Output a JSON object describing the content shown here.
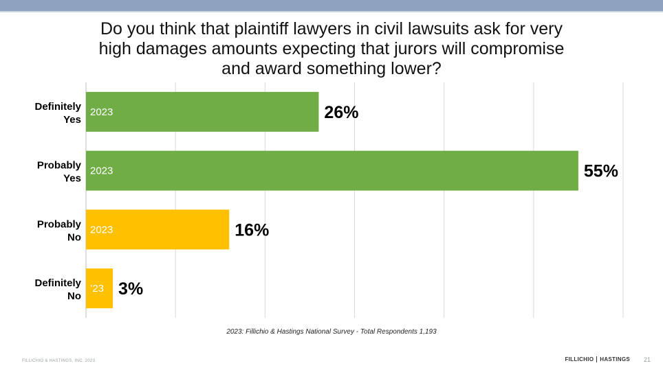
{
  "title_lines": [
    "Do you think that plaintiff lawyers in civil lawsuits ask for very",
    "high damages amounts expecting that jurors will compromise",
    "and award something lower?"
  ],
  "source": "2023: Fillichio & Hastings National Survey  - Total Respondents 1,193",
  "footer": {
    "left": "FILLICHIO & HASTINGS, INC. 2023",
    "brand_left": "FILLICHIO",
    "brand_right": "HASTINGS",
    "page_number": "21"
  },
  "colors": {
    "green": "#70ad47",
    "yellow": "#ffc000",
    "grid": "#d9d9d9"
  },
  "chart_data": {
    "type": "bar",
    "orientation": "horizontal",
    "categories": [
      [
        "Definitely",
        "Yes"
      ],
      [
        "Probably",
        "Yes"
      ],
      [
        "Probably",
        "No"
      ],
      [
        "Definitely",
        "No"
      ]
    ],
    "values": [
      26,
      55,
      16,
      3
    ],
    "value_labels": [
      "26%",
      "55%",
      "16%",
      "3%"
    ],
    "bar_labels": [
      "2023",
      "2023",
      "2023",
      "’23"
    ],
    "bar_colors": [
      "#70ad47",
      "#70ad47",
      "#ffc000",
      "#ffc000"
    ],
    "xlim": [
      0,
      60
    ],
    "grid": true
  }
}
